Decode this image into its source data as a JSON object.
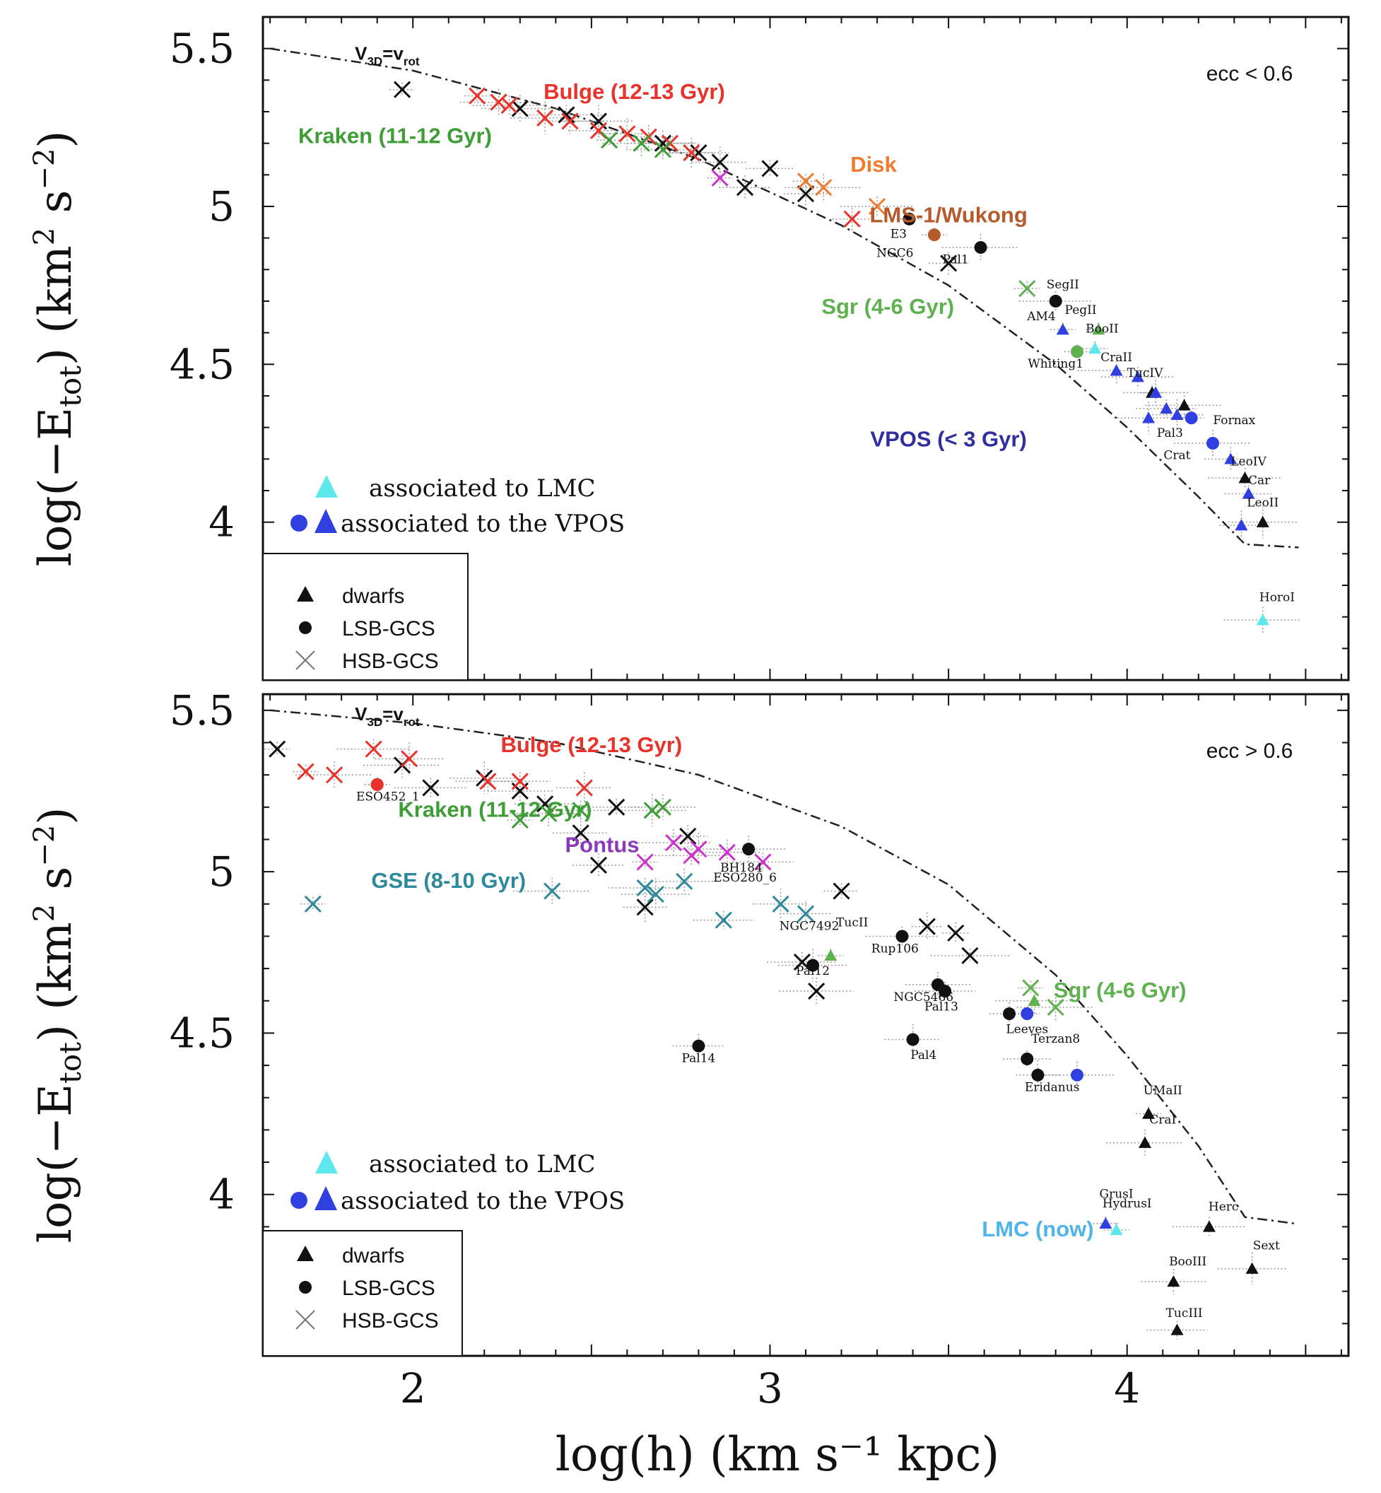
{
  "chart_data": [
    {
      "type": "scatter",
      "panel": "top",
      "annotation": "ecc < 0.6",
      "xlabel": "log(h) (km s⁻¹ kpc)",
      "ylabel": "log(−E_tot) (km² s⁻²)",
      "ylabel_parts": {
        "main": "log(−E",
        "sub": "tot",
        "tail": ") (km",
        "sup1": "2",
        "mid": " s",
        "sup2": "−2",
        "end": ")"
      },
      "xlim": [
        1.58,
        4.62
      ],
      "ylim": [
        3.5,
        5.6
      ],
      "yticks": [
        4,
        4.5,
        5,
        5.5
      ],
      "ytick_labels": [
        "4",
        "4.5",
        "5",
        "5.5"
      ],
      "curve_label": {
        "main": "V",
        "sub1": "3D",
        "eq": "=v",
        "sub2": "rot"
      },
      "curve": [
        [
          1.6,
          5.5
        ],
        [
          2.0,
          5.43
        ],
        [
          2.4,
          5.31
        ],
        [
          2.8,
          5.15
        ],
        [
          3.2,
          4.94
        ],
        [
          3.5,
          4.75
        ],
        [
          3.8,
          4.5
        ],
        [
          4.0,
          4.3
        ],
        [
          4.2,
          4.08
        ],
        [
          4.33,
          3.93
        ],
        [
          4.48,
          3.92
        ]
      ],
      "group_labels": [
        {
          "text": "Bulge (12-13 Gyr)",
          "color": "#e8322a",
          "x": 2.62,
          "y": 5.34
        },
        {
          "text": "Kraken (11-12 Gyr)",
          "color": "#3e9d35",
          "x": 1.95,
          "y": 5.2
        },
        {
          "text": "Disk",
          "color": "#f07b2e",
          "x": 3.29,
          "y": 5.11
        },
        {
          "text": "LMS-1/Wukong",
          "color": "#b55a2a",
          "x": 3.5,
          "y": 4.95
        },
        {
          "text": "Sgr (4-6 Gyr)",
          "color": "#5fb04e",
          "x": 3.33,
          "y": 4.66
        },
        {
          "text": "VPOS (< 3 Gyr)",
          "color": "#2f2fa0",
          "x": 3.5,
          "y": 4.24
        }
      ],
      "series": [
        {
          "name": "HSB-GCS",
          "marker": "x",
          "color": "#111111",
          "x": [
            1.97,
            2.3,
            2.43,
            2.52,
            2.7,
            2.8,
            2.86,
            2.93,
            3.0,
            3.1,
            3.5
          ],
          "y": [
            5.37,
            5.31,
            5.29,
            5.27,
            5.2,
            5.17,
            5.14,
            5.06,
            5.12,
            5.04,
            4.82
          ]
        },
        {
          "name": "Bulge",
          "marker": "x",
          "color": "#e8322a",
          "x": [
            2.18,
            2.24,
            2.27,
            2.37,
            2.44,
            2.52,
            2.6,
            2.66,
            2.72,
            2.78,
            3.23
          ],
          "y": [
            5.35,
            5.33,
            5.32,
            5.28,
            5.27,
            5.24,
            5.23,
            5.22,
            5.2,
            5.17,
            4.96
          ]
        },
        {
          "name": "Kraken",
          "marker": "x",
          "color": "#3e9d35",
          "x": [
            2.55,
            2.64,
            2.7
          ],
          "y": [
            5.21,
            5.2,
            5.18
          ]
        },
        {
          "name": "Disk",
          "marker": "x",
          "color": "#f07b2e",
          "x": [
            3.1,
            3.15,
            3.3
          ],
          "y": [
            5.08,
            5.06,
            5.0
          ]
        },
        {
          "name": "Pontus",
          "marker": "x",
          "color": "#cc33cc",
          "x": [
            2.86
          ],
          "y": [
            5.09
          ]
        },
        {
          "name": "Sgr",
          "marker": "x",
          "color": "#5fb04e",
          "x": [
            3.72
          ],
          "y": [
            4.74
          ]
        },
        {
          "name": "LSB-GCS",
          "marker": "circle",
          "color": "#111111",
          "x": [
            3.39,
            3.59,
            3.8
          ],
          "y": [
            4.96,
            4.87,
            4.7
          ]
        },
        {
          "name": "LMS-1/Wukong GCs",
          "marker": "circle",
          "color": "#b55a2a",
          "x": [
            3.46
          ],
          "y": [
            4.91
          ]
        },
        {
          "name": "Sgr LSB",
          "marker": "circle",
          "color": "#5fb04e",
          "x": [
            3.86
          ],
          "y": [
            4.54
          ]
        },
        {
          "name": "VPOS LSB",
          "marker": "circle",
          "color": "#2f3fe0",
          "x": [
            4.18,
            4.24
          ],
          "y": [
            4.33,
            4.25
          ]
        },
        {
          "name": "dwarfs",
          "marker": "triangle",
          "color": "#111111",
          "x": [
            4.07,
            4.16,
            4.33,
            4.38
          ],
          "y": [
            4.41,
            4.37,
            4.14,
            4.0
          ]
        },
        {
          "name": "VPOS dwarfs",
          "marker": "triangle",
          "color": "#2f3fe0",
          "x": [
            3.82,
            3.97,
            4.03,
            4.06,
            4.08,
            4.11,
            4.14,
            4.29,
            4.34,
            4.32
          ],
          "y": [
            4.61,
            4.48,
            4.46,
            4.33,
            4.41,
            4.36,
            4.34,
            4.2,
            4.09,
            3.99
          ]
        },
        {
          "name": "LMC dwarfs",
          "marker": "triangle",
          "color": "#5ee8ee",
          "x": [
            3.91,
            4.38
          ],
          "y": [
            4.55,
            3.69
          ]
        },
        {
          "name": "Sgr dwarfs",
          "marker": "triangle",
          "color": "#5fb04e",
          "x": [
            3.92
          ],
          "y": [
            4.61
          ]
        }
      ],
      "object_labels": [
        {
          "text": "Pal1",
          "x": 3.52,
          "y": 4.82
        },
        {
          "text": "E3",
          "x": 3.36,
          "y": 4.9
        },
        {
          "text": "NGC6",
          "x": 3.35,
          "y": 4.84
        },
        {
          "text": "AM4",
          "x": 3.76,
          "y": 4.64
        },
        {
          "text": "Whiting1",
          "x": 3.8,
          "y": 4.49
        },
        {
          "text": "Pal3",
          "x": 4.12,
          "y": 4.27
        },
        {
          "text": "Crat",
          "x": 4.14,
          "y": 4.2
        },
        {
          "text": "SegII",
          "x": 3.82,
          "y": 4.74
        },
        {
          "text": "PegII",
          "x": 3.87,
          "y": 4.66
        },
        {
          "text": "BooII",
          "x": 3.93,
          "y": 4.6
        },
        {
          "text": "CraII",
          "x": 3.97,
          "y": 4.51
        },
        {
          "text": "TucIV",
          "x": 4.05,
          "y": 4.46
        },
        {
          "text": "Fornax",
          "x": 4.3,
          "y": 4.31
        },
        {
          "text": "LeoIV",
          "x": 4.34,
          "y": 4.18
        },
        {
          "text": "Car",
          "x": 4.37,
          "y": 4.12
        },
        {
          "text": "LeoII",
          "x": 4.38,
          "y": 4.05
        },
        {
          "text": "HoroI",
          "x": 4.42,
          "y": 3.75
        }
      ]
    },
    {
      "type": "scatter",
      "panel": "bottom",
      "annotation": "ecc > 0.6",
      "xlabel": "log(h) (km s⁻¹ kpc)",
      "ylabel": "log(−E_tot) (km² s⁻²)",
      "ylabel_parts": {
        "main": "log(−E",
        "sub": "tot",
        "tail": ") (km",
        "sup1": "2",
        "mid": " s",
        "sup2": "−2",
        "end": ")"
      },
      "xlim": [
        1.58,
        4.62
      ],
      "ylim": [
        3.5,
        5.55
      ],
      "xticks": [
        2,
        3,
        4
      ],
      "xtick_labels": [
        "2",
        "3",
        "4"
      ],
      "yticks": [
        4,
        4.5,
        5,
        5.5
      ],
      "ytick_labels": [
        "4",
        "4.5",
        "5",
        "5.5"
      ],
      "curve_label": {
        "main": "V",
        "sub1": "3D",
        "eq": "=v",
        "sub2": "rot"
      },
      "curve": [
        [
          1.6,
          5.5
        ],
        [
          2.0,
          5.46
        ],
        [
          2.4,
          5.4
        ],
        [
          2.8,
          5.3
        ],
        [
          3.2,
          5.14
        ],
        [
          3.5,
          4.96
        ],
        [
          3.8,
          4.68
        ],
        [
          4.0,
          4.43
        ],
        [
          4.2,
          4.15
        ],
        [
          4.33,
          3.93
        ],
        [
          4.47,
          3.91
        ]
      ],
      "group_labels": [
        {
          "text": "Bulge (12-13 Gyr)",
          "color": "#e8322a",
          "x": 2.5,
          "y": 5.37
        },
        {
          "text": "Kraken (11-12 Gyr)",
          "color": "#3e9d35",
          "x": 2.23,
          "y": 5.17
        },
        {
          "text": "Pontus",
          "color": "#8a3ab9",
          "x": 2.53,
          "y": 5.06
        },
        {
          "text": "GSE (8-10 Gyr)",
          "color": "#2e8a9a",
          "x": 2.1,
          "y": 4.95
        },
        {
          "text": "Sgr (4-6 Gyr)",
          "color": "#5fb04e",
          "x": 3.98,
          "y": 4.61
        },
        {
          "text": "LMC (now)",
          "color": "#4fb4e8",
          "x": 3.75,
          "y": 3.87
        }
      ],
      "series": [
        {
          "name": "HSB-GCS",
          "marker": "x",
          "color": "#111111",
          "x": [
            1.62,
            1.97,
            2.05,
            2.2,
            2.3,
            2.37,
            2.47,
            2.52,
            2.57,
            2.65,
            2.77,
            3.2,
            3.44,
            3.52,
            3.56,
            3.13,
            3.09
          ],
          "y": [
            5.38,
            5.33,
            5.26,
            5.29,
            5.25,
            5.21,
            5.12,
            5.02,
            5.2,
            4.89,
            5.11,
            4.94,
            4.83,
            4.81,
            4.74,
            4.63,
            4.72
          ]
        },
        {
          "name": "Bulge",
          "marker": "x",
          "color": "#e8322a",
          "x": [
            1.7,
            1.78,
            1.89,
            1.99,
            2.21,
            2.3,
            2.48
          ],
          "y": [
            5.31,
            5.3,
            5.38,
            5.35,
            5.28,
            5.28,
            5.26
          ]
        },
        {
          "name": "Kraken",
          "marker": "x",
          "color": "#3e9d35",
          "x": [
            2.3,
            2.38,
            2.47,
            2.67,
            2.7
          ],
          "y": [
            5.16,
            5.18,
            5.19,
            5.19,
            5.2
          ]
        },
        {
          "name": "Pontus",
          "marker": "x",
          "color": "#cc33cc",
          "x": [
            2.65,
            2.73,
            2.78,
            2.8,
            2.88,
            2.98
          ],
          "y": [
            5.03,
            5.09,
            5.05,
            5.07,
            5.06,
            5.03
          ]
        },
        {
          "name": "GSE",
          "marker": "x",
          "color": "#2e8a9a",
          "x": [
            1.72,
            2.39,
            2.65,
            2.68,
            2.76,
            2.87,
            3.03,
            3.1
          ],
          "y": [
            4.9,
            4.94,
            4.95,
            4.93,
            4.97,
            4.85,
            4.9,
            4.87
          ]
        },
        {
          "name": "Sgr",
          "marker": "x",
          "color": "#5fb04e",
          "x": [
            3.73,
            3.8
          ],
          "y": [
            4.64,
            4.58
          ]
        },
        {
          "name": "LSB-GCS",
          "marker": "circle",
          "color": "#111111",
          "x": [
            1.9,
            2.94,
            3.37,
            3.12,
            3.47,
            3.49,
            3.4,
            2.8,
            3.72,
            3.75,
            3.67
          ],
          "y": [
            5.27,
            5.07,
            4.8,
            4.71,
            4.65,
            4.63,
            4.48,
            4.46,
            4.42,
            4.37,
            4.56
          ]
        },
        {
          "name": "Bulge LSB",
          "marker": "circle",
          "color": "#e8322a",
          "x": [
            1.9
          ],
          "y": [
            5.27
          ]
        },
        {
          "name": "VPOS LSB",
          "marker": "circle",
          "color": "#2f3fe0",
          "x": [
            3.72,
            3.86
          ],
          "y": [
            4.56,
            4.37
          ]
        },
        {
          "name": "dwarfs",
          "marker": "triangle",
          "color": "#111111",
          "x": [
            4.06,
            4.05,
            4.23,
            4.35,
            4.13,
            4.14
          ],
          "y": [
            4.25,
            4.16,
            3.9,
            3.77,
            3.73,
            3.58
          ]
        },
        {
          "name": "VPOS dwarfs",
          "marker": "triangle",
          "color": "#2f3fe0",
          "x": [
            3.94
          ],
          "y": [
            3.91
          ]
        },
        {
          "name": "LMC dwarfs",
          "marker": "triangle",
          "color": "#5ee8ee",
          "x": [
            3.97
          ],
          "y": [
            3.89
          ]
        },
        {
          "name": "Sgr dwarfs",
          "marker": "triangle",
          "color": "#5fb04e",
          "x": [
            3.17,
            3.74
          ],
          "y": [
            4.74,
            4.6
          ]
        }
      ],
      "object_labels": [
        {
          "text": "ESO452_1",
          "x": 1.93,
          "y": 5.22
        },
        {
          "text": "BH184",
          "x": 2.92,
          "y": 5.0
        },
        {
          "text": "ESO280_6",
          "x": 2.93,
          "y": 4.97
        },
        {
          "text": "NGC7492",
          "x": 3.11,
          "y": 4.82
        },
        {
          "text": "TucII",
          "x": 3.23,
          "y": 4.83
        },
        {
          "text": "Rup106",
          "x": 3.35,
          "y": 4.75
        },
        {
          "text": "Pal14",
          "x": 2.8,
          "y": 4.41
        },
        {
          "text": "Pal4",
          "x": 3.43,
          "y": 4.42
        },
        {
          "text": "NGC5466",
          "x": 3.43,
          "y": 4.6
        },
        {
          "text": "Pal13",
          "x": 3.48,
          "y": 4.57
        },
        {
          "text": "Pal12",
          "x": 3.12,
          "y": 4.68
        },
        {
          "text": "Leeves",
          "x": 3.72,
          "y": 4.5
        },
        {
          "text": "Terzan8",
          "x": 3.8,
          "y": 4.47
        },
        {
          "text": "Eridanus",
          "x": 3.79,
          "y": 4.32
        },
        {
          "text": "UMaII",
          "x": 4.1,
          "y": 4.31
        },
        {
          "text": "CraI",
          "x": 4.1,
          "y": 4.22
        },
        {
          "text": "GrusI",
          "x": 3.97,
          "y": 3.99
        },
        {
          "text": "HydrusI",
          "x": 4.0,
          "y": 3.96
        },
        {
          "text": "Herc",
          "x": 4.27,
          "y": 3.95
        },
        {
          "text": "Sext",
          "x": 4.39,
          "y": 3.83
        },
        {
          "text": "BooIII",
          "x": 4.17,
          "y": 3.78
        },
        {
          "text": "TucIII",
          "x": 4.16,
          "y": 3.62
        }
      ]
    }
  ],
  "legend": {
    "dwarfs": "dwarfs",
    "lsb": "LSB-GCS",
    "hsb": "HSB-GCS",
    "assoc_lmc": "associated to LMC",
    "assoc_vpos": "associated to the VPOS"
  },
  "colors": {
    "lmc": "#5ee8ee",
    "vpos": "#2f3fe0",
    "black": "#111111",
    "gray_err": "#888888"
  }
}
